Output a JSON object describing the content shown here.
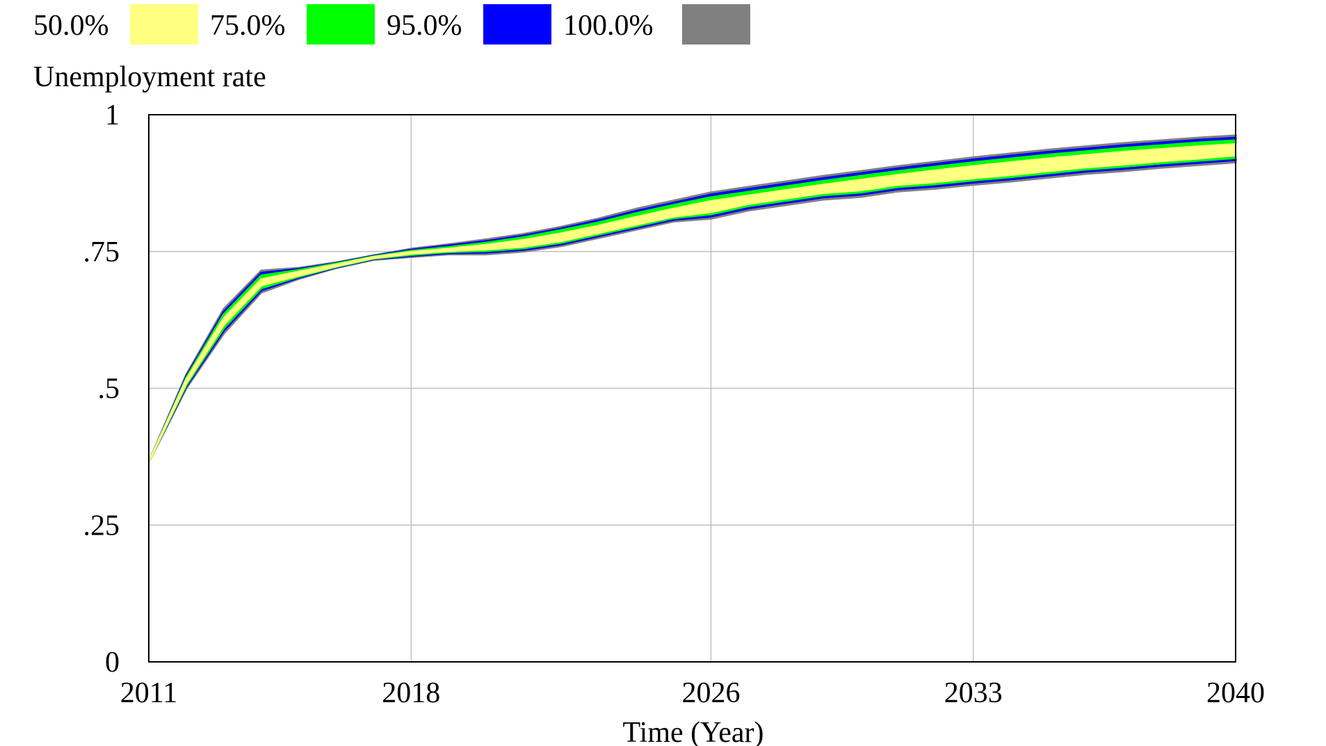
{
  "chart_data": {
    "type": "area",
    "title": "Unemployment rate",
    "xlabel": "Time (Year)",
    "ylabel": "",
    "xlim": [
      2011,
      2040
    ],
    "ylim": [
      0,
      1
    ],
    "x_ticks": [
      2011,
      2018,
      2026,
      2033,
      2040
    ],
    "x_tick_labels": [
      "2011",
      "2018",
      "2026",
      "2033",
      "2040"
    ],
    "y_ticks": [
      0,
      0.25,
      0.5,
      0.75,
      1
    ],
    "y_tick_labels": [
      "0",
      ".25",
      ".5",
      ".75",
      "1"
    ],
    "grid": true,
    "legend_position": "top-left",
    "legend": [
      {
        "label": "50.0%",
        "color": "#ffff80"
      },
      {
        "label": "75.0%",
        "color": "#00ff00"
      },
      {
        "label": "95.0%",
        "color": "#0000ff"
      },
      {
        "label": "100.0%",
        "color": "#808080"
      }
    ],
    "x": [
      2011,
      2012,
      2013,
      2014,
      2015,
      2016,
      2017,
      2018,
      2019,
      2020,
      2021,
      2022,
      2023,
      2024,
      2025,
      2026,
      2027,
      2028,
      2029,
      2030,
      2031,
      2032,
      2033,
      2034,
      2035,
      2036,
      2037,
      2038,
      2039,
      2040
    ],
    "series": [
      {
        "name": "100.0%",
        "lower": [
          0.365,
          0.5,
          0.6,
          0.675,
          0.7,
          0.72,
          0.735,
          0.74,
          0.745,
          0.745,
          0.75,
          0.76,
          0.775,
          0.79,
          0.805,
          0.81,
          0.825,
          0.835,
          0.845,
          0.85,
          0.86,
          0.865,
          0.872,
          0.878,
          0.885,
          0.892,
          0.897,
          0.903,
          0.908,
          0.913
        ],
        "upper": [
          0.365,
          0.525,
          0.645,
          0.715,
          0.72,
          0.73,
          0.743,
          0.755,
          0.763,
          0.772,
          0.782,
          0.795,
          0.81,
          0.828,
          0.843,
          0.858,
          0.868,
          0.878,
          0.888,
          0.897,
          0.906,
          0.914,
          0.922,
          0.929,
          0.936,
          0.942,
          0.948,
          0.953,
          0.958,
          0.962
        ]
      },
      {
        "name": "95.0%",
        "lower": [
          0.365,
          0.503,
          0.605,
          0.679,
          0.702,
          0.721,
          0.736,
          0.742,
          0.747,
          0.748,
          0.753,
          0.763,
          0.778,
          0.793,
          0.808,
          0.814,
          0.829,
          0.839,
          0.849,
          0.854,
          0.864,
          0.869,
          0.876,
          0.882,
          0.889,
          0.896,
          0.901,
          0.907,
          0.912,
          0.917
        ],
        "upper": [
          0.365,
          0.522,
          0.64,
          0.711,
          0.718,
          0.729,
          0.742,
          0.753,
          0.761,
          0.769,
          0.779,
          0.792,
          0.807,
          0.824,
          0.839,
          0.854,
          0.864,
          0.874,
          0.884,
          0.893,
          0.902,
          0.91,
          0.918,
          0.925,
          0.932,
          0.938,
          0.944,
          0.949,
          0.954,
          0.958
        ]
      },
      {
        "name": "75.0%",
        "lower": [
          0.365,
          0.506,
          0.61,
          0.683,
          0.704,
          0.722,
          0.737,
          0.744,
          0.749,
          0.751,
          0.756,
          0.766,
          0.781,
          0.796,
          0.811,
          0.818,
          0.833,
          0.843,
          0.853,
          0.858,
          0.868,
          0.873,
          0.88,
          0.886,
          0.893,
          0.9,
          0.905,
          0.911,
          0.916,
          0.921
        ],
        "upper": [
          0.365,
          0.519,
          0.635,
          0.706,
          0.716,
          0.728,
          0.741,
          0.751,
          0.758,
          0.766,
          0.776,
          0.789,
          0.803,
          0.82,
          0.835,
          0.849,
          0.859,
          0.869,
          0.879,
          0.888,
          0.897,
          0.905,
          0.913,
          0.92,
          0.927,
          0.933,
          0.939,
          0.944,
          0.949,
          0.953
        ]
      },
      {
        "name": "50.0%",
        "lower": [
          0.365,
          0.509,
          0.616,
          0.688,
          0.706,
          0.723,
          0.738,
          0.746,
          0.751,
          0.754,
          0.759,
          0.769,
          0.784,
          0.799,
          0.814,
          0.822,
          0.837,
          0.847,
          0.857,
          0.862,
          0.872,
          0.877,
          0.884,
          0.89,
          0.897,
          0.904,
          0.909,
          0.915,
          0.92,
          0.926
        ],
        "upper": [
          0.365,
          0.516,
          0.628,
          0.699,
          0.713,
          0.726,
          0.74,
          0.749,
          0.755,
          0.762,
          0.771,
          0.783,
          0.797,
          0.813,
          0.828,
          0.842,
          0.852,
          0.862,
          0.872,
          0.881,
          0.89,
          0.898,
          0.906,
          0.913,
          0.92,
          0.926,
          0.932,
          0.937,
          0.942,
          0.946
        ]
      }
    ]
  }
}
